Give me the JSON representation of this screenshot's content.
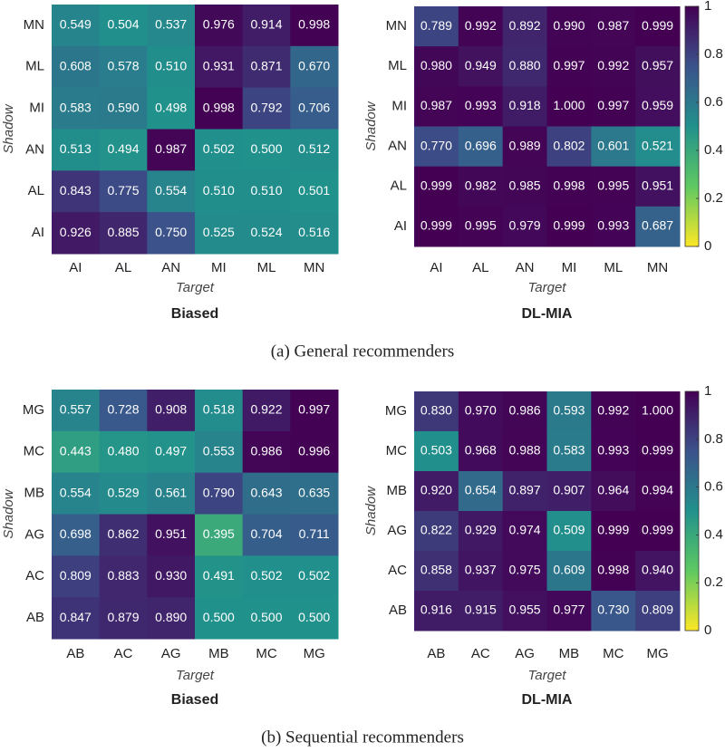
{
  "chart_data": [
    {
      "type": "heatmap",
      "title": "Biased",
      "xlabel": "Target",
      "ylabel": "Shadow",
      "x_categories": [
        "AI",
        "AL",
        "AN",
        "MI",
        "ML",
        "MN"
      ],
      "y_categories": [
        "MN",
        "ML",
        "MI",
        "AN",
        "AL",
        "AI"
      ],
      "values": [
        [
          0.549,
          0.504,
          0.537,
          0.976,
          0.914,
          0.998
        ],
        [
          0.608,
          0.578,
          0.51,
          0.931,
          0.871,
          0.67
        ],
        [
          0.583,
          0.59,
          0.498,
          0.998,
          0.792,
          0.706
        ],
        [
          0.513,
          0.494,
          0.987,
          0.502,
          0.5,
          0.512
        ],
        [
          0.843,
          0.775,
          0.554,
          0.51,
          0.51,
          0.501
        ],
        [
          0.926,
          0.885,
          0.75,
          0.525,
          0.524,
          0.516
        ]
      ],
      "value_labels": [
        [
          "0.549",
          "0.504",
          "0.537",
          "0.976",
          "0.914",
          "0.998"
        ],
        [
          "0.608",
          "0.578",
          "0.510",
          "0.931",
          "0.871",
          "0.670"
        ],
        [
          "0.583",
          "0.590",
          "0.498",
          "0.998",
          "0.792",
          "0.706"
        ],
        [
          "0.513",
          "0.494",
          "0.987",
          "0.502",
          "0.500",
          "0.512"
        ],
        [
          "0.843",
          "0.775",
          "0.554",
          "0.510",
          "0.510",
          "0.501"
        ],
        [
          "0.926",
          "0.885",
          "0.750",
          "0.525",
          "0.524",
          "0.516"
        ]
      ],
      "clim": [
        0,
        1
      ],
      "colormap": [
        "#fde725",
        "#5ec962",
        "#21918c",
        "#3b528b",
        "#440154"
      ],
      "colorbar": false
    },
    {
      "type": "heatmap",
      "title": "DL-MIA",
      "xlabel": "Target",
      "ylabel": "Shadow",
      "x_categories": [
        "AI",
        "AL",
        "AN",
        "MI",
        "ML",
        "MN"
      ],
      "y_categories": [
        "MN",
        "ML",
        "MI",
        "AN",
        "AL",
        "AI"
      ],
      "values": [
        [
          0.789,
          0.992,
          0.892,
          0.99,
          0.987,
          0.999
        ],
        [
          0.98,
          0.949,
          0.88,
          0.997,
          0.992,
          0.957
        ],
        [
          0.987,
          0.993,
          0.918,
          1.0,
          0.997,
          0.959
        ],
        [
          0.77,
          0.696,
          0.989,
          0.802,
          0.601,
          0.521
        ],
        [
          0.999,
          0.982,
          0.985,
          0.998,
          0.995,
          0.951
        ],
        [
          0.999,
          0.995,
          0.979,
          0.999,
          0.993,
          0.687
        ]
      ],
      "value_labels": [
        [
          "0.789",
          "0.992",
          "0.892",
          "0.990",
          "0.987",
          "0.999"
        ],
        [
          "0.980",
          "0.949",
          "0.880",
          "0.997",
          "0.992",
          "0.957"
        ],
        [
          "0.987",
          "0.993",
          "0.918",
          "1.000",
          "0.997",
          "0.959"
        ],
        [
          "0.770",
          "0.696",
          "0.989",
          "0.802",
          "0.601",
          "0.521"
        ],
        [
          "0.999",
          "0.982",
          "0.985",
          "0.998",
          "0.995",
          "0.951"
        ],
        [
          "0.999",
          "0.995",
          "0.979",
          "0.999",
          "0.993",
          "0.687"
        ]
      ],
      "clim": [
        0,
        1
      ],
      "colormap": [
        "#fde725",
        "#5ec962",
        "#21918c",
        "#3b528b",
        "#440154"
      ],
      "colorbar": true,
      "cticks": [
        0,
        0.2,
        0.4,
        0.6,
        0.8,
        1
      ]
    },
    {
      "type": "heatmap",
      "title": "Biased",
      "xlabel": "Target",
      "ylabel": "Shadow",
      "x_categories": [
        "AB",
        "AC",
        "AG",
        "MB",
        "MC",
        "MG"
      ],
      "y_categories": [
        "MG",
        "MC",
        "MB",
        "AG",
        "AC",
        "AB"
      ],
      "values": [
        [
          0.557,
          0.728,
          0.908,
          0.518,
          0.922,
          0.997
        ],
        [
          0.443,
          0.48,
          0.497,
          0.553,
          0.986,
          0.996
        ],
        [
          0.554,
          0.529,
          0.561,
          0.79,
          0.643,
          0.635
        ],
        [
          0.698,
          0.862,
          0.951,
          0.395,
          0.704,
          0.711
        ],
        [
          0.809,
          0.883,
          0.93,
          0.491,
          0.502,
          0.502
        ],
        [
          0.847,
          0.879,
          0.89,
          0.5,
          0.5,
          0.5
        ]
      ],
      "value_labels": [
        [
          "0.557",
          "0.728",
          "0.908",
          "0.518",
          "0.922",
          "0.997"
        ],
        [
          "0.443",
          "0.480",
          "0.497",
          "0.553",
          "0.986",
          "0.996"
        ],
        [
          "0.554",
          "0.529",
          "0.561",
          "0.790",
          "0.643",
          "0.635"
        ],
        [
          "0.698",
          "0.862",
          "0.951",
          "0.395",
          "0.704",
          "0.711"
        ],
        [
          "0.809",
          "0.883",
          "0.930",
          "0.491",
          "0.502",
          "0.502"
        ],
        [
          "0.847",
          "0.879",
          "0.890",
          "0.500",
          "0.500",
          "0.500"
        ]
      ],
      "clim": [
        0,
        1
      ],
      "colormap": [
        "#fde725",
        "#5ec962",
        "#21918c",
        "#3b528b",
        "#440154"
      ],
      "colorbar": false
    },
    {
      "type": "heatmap",
      "title": "DL-MIA",
      "xlabel": "Target",
      "ylabel": "Shadow",
      "x_categories": [
        "AB",
        "AC",
        "AG",
        "MB",
        "MC",
        "MG"
      ],
      "y_categories": [
        "MG",
        "MC",
        "MB",
        "AG",
        "AC",
        "AB"
      ],
      "values": [
        [
          0.83,
          0.97,
          0.986,
          0.593,
          0.992,
          1.0
        ],
        [
          0.503,
          0.968,
          0.988,
          0.583,
          0.993,
          0.999
        ],
        [
          0.92,
          0.654,
          0.897,
          0.907,
          0.964,
          0.994
        ],
        [
          0.822,
          0.929,
          0.974,
          0.509,
          0.999,
          0.999
        ],
        [
          0.858,
          0.937,
          0.975,
          0.609,
          0.998,
          0.94
        ],
        [
          0.916,
          0.915,
          0.955,
          0.977,
          0.73,
          0.809
        ]
      ],
      "value_labels": [
        [
          "0.830",
          "0.970",
          "0.986",
          "0.593",
          "0.992",
          "1.000"
        ],
        [
          "0.503",
          "0.968",
          "0.988",
          "0.583",
          "0.993",
          "0.999"
        ],
        [
          "0.920",
          "0.654",
          "0.897",
          "0.907",
          "0.964",
          "0.994"
        ],
        [
          "0.822",
          "0.929",
          "0.974",
          "0.509",
          "0.999",
          "0.999"
        ],
        [
          "0.858",
          "0.937",
          "0.975",
          "0.609",
          "0.998",
          "0.940"
        ],
        [
          "0.916",
          "0.915",
          "0.955",
          "0.977",
          "0.730",
          "0.809"
        ]
      ],
      "clim": [
        0,
        1
      ],
      "colormap": [
        "#fde725",
        "#5ec962",
        "#21918c",
        "#3b528b",
        "#440154"
      ],
      "colorbar": true,
      "cticks": [
        0,
        0.2,
        0.4,
        0.6,
        0.8,
        1
      ]
    }
  ],
  "captions": [
    "(a)  General recommenders",
    "(b)  Sequential recommenders"
  ]
}
